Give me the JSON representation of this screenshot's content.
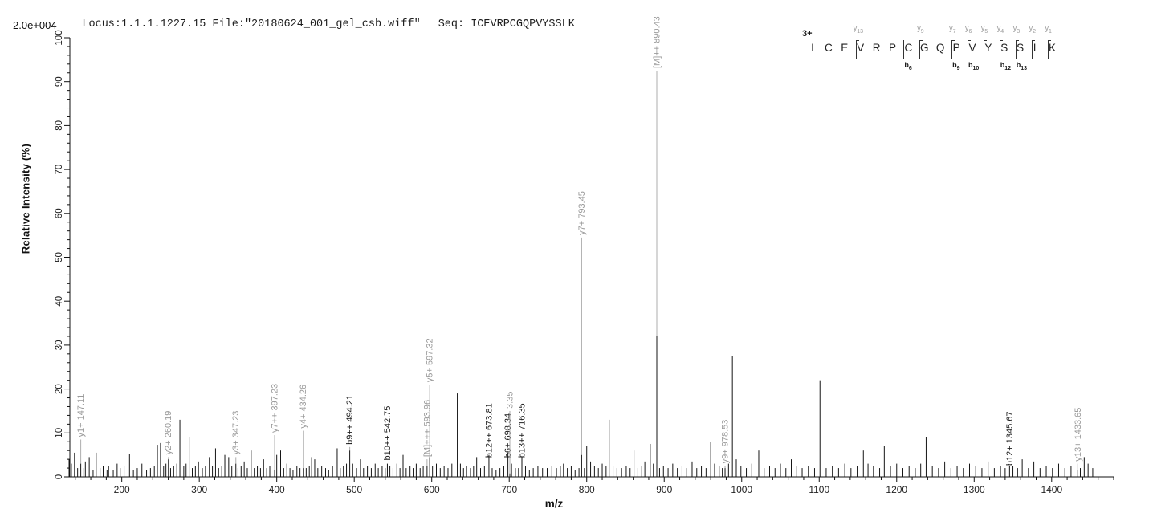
{
  "header": {
    "locus_file": "Locus:1.1.1.1227.15 File:\"20180624_001_gel_csb.wiff\"",
    "seq_label": "Seq: ICEVRPCGQPVYSSLK"
  },
  "y_axis": {
    "title": "Relative  Intensity (%)",
    "scale_label": "2.0e+004",
    "range": [
      0,
      100
    ],
    "major_ticks": [
      0,
      10,
      20,
      30,
      40,
      50,
      60,
      70,
      80,
      90,
      100
    ],
    "minor_step": 2
  },
  "x_axis": {
    "title": "m/z",
    "range": [
      133,
      1480
    ],
    "major_ticks": [
      200,
      300,
      400,
      500,
      600,
      700,
      800,
      900,
      1000,
      1100,
      1200,
      1300,
      1400
    ],
    "minor_step": 20
  },
  "colors": {
    "peak": "#151515",
    "axis": "#111111",
    "leader": "#adadad",
    "label_gray": "#9a9a9a",
    "label_black": "#1c1c1c"
  },
  "peptide": {
    "charge_label": "3+",
    "residues": [
      "I",
      "C",
      "E",
      "V",
      "R",
      "P",
      "C",
      "G",
      "Q",
      "P",
      "V",
      "Y",
      "S",
      "S",
      "L",
      "K"
    ],
    "cleavages": [
      {
        "after_index": 2,
        "y_ion": "y13",
        "b_ion": null
      },
      {
        "after_index": 5,
        "y_ion": null,
        "b_ion": "b6"
      },
      {
        "after_index": 6,
        "y_ion": "y9",
        "b_ion": null
      },
      {
        "after_index": 8,
        "y_ion": "y7",
        "b_ion": "b9"
      },
      {
        "after_index": 9,
        "y_ion": "y6",
        "b_ion": "b10"
      },
      {
        "after_index": 10,
        "y_ion": "y5",
        "b_ion": null
      },
      {
        "after_index": 11,
        "y_ion": "y4",
        "b_ion": "b12"
      },
      {
        "after_index": 12,
        "y_ion": "y3",
        "b_ion": "b13"
      },
      {
        "after_index": 13,
        "y_ion": "y2",
        "b_ion": null
      },
      {
        "after_index": 14,
        "y_ion": "y1",
        "b_ion": null
      }
    ]
  },
  "chart_data": {
    "type": "bar",
    "subtype": "mass-spectrum-stick-plot",
    "title": "",
    "xlabel": "m/z",
    "ylabel": "Relative  Intensity (%)",
    "xlim": [
      133,
      1480
    ],
    "ylim": [
      0,
      100
    ],
    "grid": false,
    "full_scale_counts": "2.0e+004",
    "labeled_peaks": [
      {
        "mz": 147.11,
        "label": "y1+ 147.11",
        "color": "gray",
        "intensity_pct": 3,
        "label_anchor_pct": 8.5
      },
      {
        "mz": 260.19,
        "label": "y2+ 260.19",
        "color": "gray",
        "intensity_pct": 4,
        "label_anchor_pct": 4.5
      },
      {
        "mz": 347.23,
        "label": "y3+ 347.23",
        "color": "gray",
        "intensity_pct": 3,
        "label_anchor_pct": 4.5
      },
      {
        "mz": 397.23,
        "label": "y7++ 397.23",
        "color": "gray",
        "intensity_pct": 1.5,
        "label_anchor_pct": 9.5
      },
      {
        "mz": 434.26,
        "label": "y4+ 434.26",
        "color": "gray",
        "intensity_pct": 2,
        "label_anchor_pct": 10.5
      },
      {
        "mz": 494.21,
        "label": "b9++ 494.21",
        "color": "black",
        "intensity_pct": 6,
        "label_anchor_pct": 6.8
      },
      {
        "mz": 542.75,
        "label": "b10++ 542.75",
        "color": "black",
        "intensity_pct": 3,
        "label_anchor_pct": 3.2
      },
      {
        "mz": 593.96,
        "label": "[M]+++ 593.96",
        "color": "gray",
        "intensity_pct": 2.5,
        "label_anchor_pct": 4
      },
      {
        "mz": 597.32,
        "label": "y5+ 597.32",
        "color": "gray",
        "intensity_pct": 4.5,
        "label_anchor_pct": 21
      },
      {
        "mz": 673.81,
        "label": "b12++ 673.81",
        "color": "black",
        "intensity_pct": 5,
        "label_anchor_pct": 3.8
      },
      {
        "mz": 698.34,
        "label": "b6+ 698.34",
        "color": "black",
        "intensity_pct": 5.5,
        "label_anchor_pct": 3.8
      },
      {
        "mz": 700.8,
        "label": "3.35",
        "color": "gray",
        "intensity_pct": 0.8,
        "label_anchor_pct": 15
      },
      {
        "mz": 716.35,
        "label": "b13++ 716.35",
        "color": "black",
        "intensity_pct": 4.5,
        "label_anchor_pct": 3.8
      },
      {
        "mz": 793.45,
        "label": "y7+ 793.45",
        "color": "gray",
        "intensity_pct": 5,
        "label_anchor_pct": 54.5
      },
      {
        "mz": 890.43,
        "label": "[M]++ 890.43",
        "color": "gray",
        "intensity_pct": 32,
        "label_anchor_pct": 92.5
      },
      {
        "mz": 978.53,
        "label": "y9+ 978.53",
        "color": "gray",
        "intensity_pct": 2,
        "label_anchor_pct": 2.5
      },
      {
        "mz": 1345.67,
        "label": "b12+ 1345.67",
        "color": "black",
        "intensity_pct": 2.5,
        "label_anchor_pct": 2
      },
      {
        "mz": 1433.65,
        "label": "y13+ 1433.65",
        "color": "gray",
        "intensity_pct": 1.5,
        "label_anchor_pct": 3
      }
    ],
    "background_peaks": [
      [
        132,
        4
      ],
      [
        135,
        3
      ],
      [
        139,
        5.5
      ],
      [
        143,
        2
      ],
      [
        151,
        2
      ],
      [
        153,
        3.5
      ],
      [
        158,
        4.5
      ],
      [
        163,
        1.5
      ],
      [
        167,
        5.5
      ],
      [
        172,
        2
      ],
      [
        176,
        2.5
      ],
      [
        181,
        1.5
      ],
      [
        183,
        2.5
      ],
      [
        189,
        1.5
      ],
      [
        194,
        3
      ],
      [
        198,
        2
      ],
      [
        203,
        2.5
      ],
      [
        210,
        5.3
      ],
      [
        215,
        1.5
      ],
      [
        220,
        2
      ],
      [
        226,
        3
      ],
      [
        232,
        1.5
      ],
      [
        237,
        2
      ],
      [
        242,
        2.5
      ],
      [
        246,
        7.3
      ],
      [
        250,
        7.7
      ],
      [
        254,
        2.5
      ],
      [
        257,
        3
      ],
      [
        263,
        2
      ],
      [
        267,
        2.5
      ],
      [
        271,
        3
      ],
      [
        275,
        13
      ],
      [
        280,
        2.5
      ],
      [
        283,
        3
      ],
      [
        287,
        9
      ],
      [
        291,
        2
      ],
      [
        295,
        2.5
      ],
      [
        299,
        3.5
      ],
      [
        304,
        2
      ],
      [
        308,
        2.5
      ],
      [
        313,
        4.5
      ],
      [
        317,
        2.5
      ],
      [
        321,
        6.5
      ],
      [
        325,
        2
      ],
      [
        329,
        2.5
      ],
      [
        333,
        5
      ],
      [
        338,
        4.5
      ],
      [
        342,
        2.5
      ],
      [
        350,
        2
      ],
      [
        354,
        2.5
      ],
      [
        358,
        3.5
      ],
      [
        362,
        2
      ],
      [
        367,
        6
      ],
      [
        371,
        2
      ],
      [
        375,
        2.5
      ],
      [
        379,
        2
      ],
      [
        383,
        4
      ],
      [
        387,
        2
      ],
      [
        391,
        2.5
      ],
      [
        400,
        5
      ],
      [
        405,
        6
      ],
      [
        409,
        2
      ],
      [
        413,
        3
      ],
      [
        417,
        2
      ],
      [
        421,
        1.5
      ],
      [
        426,
        2.5
      ],
      [
        430,
        2
      ],
      [
        438,
        2
      ],
      [
        442,
        2.5
      ],
      [
        445,
        4.5
      ],
      [
        449,
        4
      ],
      [
        453,
        2
      ],
      [
        458,
        2.5
      ],
      [
        463,
        2
      ],
      [
        467,
        1.5
      ],
      [
        472,
        2.5
      ],
      [
        478,
        6.5
      ],
      [
        482,
        2
      ],
      [
        486,
        2.5
      ],
      [
        490,
        3
      ],
      [
        498,
        3
      ],
      [
        503,
        2
      ],
      [
        508,
        4
      ],
      [
        512,
        2
      ],
      [
        517,
        2.5
      ],
      [
        522,
        2
      ],
      [
        527,
        3
      ],
      [
        531,
        2
      ],
      [
        536,
        2.5
      ],
      [
        540,
        2
      ],
      [
        546,
        2.5
      ],
      [
        550,
        2
      ],
      [
        555,
        3
      ],
      [
        559,
        2
      ],
      [
        563,
        5
      ],
      [
        567,
        2
      ],
      [
        572,
        2.5
      ],
      [
        576,
        2
      ],
      [
        580,
        3
      ],
      [
        585,
        2
      ],
      [
        589,
        2.5
      ],
      [
        601,
        2.5
      ],
      [
        606,
        3
      ],
      [
        611,
        2
      ],
      [
        616,
        2.5
      ],
      [
        621,
        2
      ],
      [
        626,
        3
      ],
      [
        633,
        19
      ],
      [
        637,
        3
      ],
      [
        641,
        2
      ],
      [
        645,
        2.5
      ],
      [
        650,
        2
      ],
      [
        654,
        2.5
      ],
      [
        658,
        4.5
      ],
      [
        663,
        2
      ],
      [
        668,
        2.5
      ],
      [
        678,
        2
      ],
      [
        683,
        1.5
      ],
      [
        688,
        2
      ],
      [
        693,
        2.5
      ],
      [
        703,
        3
      ],
      [
        708,
        2
      ],
      [
        712,
        2
      ],
      [
        721,
        2.5
      ],
      [
        726,
        1.5
      ],
      [
        731,
        2
      ],
      [
        737,
        2.5
      ],
      [
        743,
        2
      ],
      [
        749,
        2
      ],
      [
        755,
        2.5
      ],
      [
        761,
        2
      ],
      [
        766,
        2.5
      ],
      [
        770,
        3
      ],
      [
        775,
        2
      ],
      [
        780,
        2.5
      ],
      [
        785,
        1.5
      ],
      [
        790,
        2
      ],
      [
        797,
        2
      ],
      [
        800,
        7
      ],
      [
        805,
        3.5
      ],
      [
        810,
        2.5
      ],
      [
        815,
        2
      ],
      [
        820,
        3
      ],
      [
        825,
        2.5
      ],
      [
        829,
        13
      ],
      [
        834,
        2.5
      ],
      [
        839,
        2
      ],
      [
        845,
        2
      ],
      [
        851,
        2.5
      ],
      [
        856,
        2
      ],
      [
        861,
        6
      ],
      [
        866,
        2
      ],
      [
        871,
        2.5
      ],
      [
        875,
        3.5
      ],
      [
        882,
        7.5
      ],
      [
        886,
        3
      ],
      [
        894,
        2
      ],
      [
        899,
        2.5
      ],
      [
        905,
        2
      ],
      [
        911,
        3
      ],
      [
        917,
        2
      ],
      [
        923,
        2.5
      ],
      [
        929,
        2
      ],
      [
        936,
        3.5
      ],
      [
        942,
        2
      ],
      [
        948,
        2.5
      ],
      [
        954,
        2
      ],
      [
        960,
        8
      ],
      [
        965,
        3
      ],
      [
        971,
        2.5
      ],
      [
        975,
        2
      ],
      [
        983,
        3
      ],
      [
        988,
        27.5
      ],
      [
        993,
        4
      ],
      [
        999,
        2.5
      ],
      [
        1006,
        2
      ],
      [
        1013,
        3
      ],
      [
        1022,
        6
      ],
      [
        1029,
        2
      ],
      [
        1036,
        2.5
      ],
      [
        1043,
        2
      ],
      [
        1050,
        3
      ],
      [
        1057,
        2
      ],
      [
        1064,
        4
      ],
      [
        1071,
        2.5
      ],
      [
        1078,
        2
      ],
      [
        1086,
        2.5
      ],
      [
        1094,
        2
      ],
      [
        1101,
        22
      ],
      [
        1109,
        2
      ],
      [
        1117,
        2.5
      ],
      [
        1125,
        2
      ],
      [
        1133,
        3
      ],
      [
        1141,
        2
      ],
      [
        1149,
        2.5
      ],
      [
        1157,
        6
      ],
      [
        1163,
        3
      ],
      [
        1170,
        2.5
      ],
      [
        1178,
        2
      ],
      [
        1184,
        7
      ],
      [
        1192,
        2.5
      ],
      [
        1200,
        3
      ],
      [
        1208,
        2
      ],
      [
        1216,
        2.5
      ],
      [
        1224,
        2
      ],
      [
        1231,
        3
      ],
      [
        1238,
        9
      ],
      [
        1246,
        2.5
      ],
      [
        1254,
        2
      ],
      [
        1262,
        3.5
      ],
      [
        1270,
        2
      ],
      [
        1278,
        2.5
      ],
      [
        1286,
        2
      ],
      [
        1294,
        3
      ],
      [
        1302,
        2.5
      ],
      [
        1310,
        2
      ],
      [
        1318,
        3.5
      ],
      [
        1326,
        2
      ],
      [
        1334,
        2.5
      ],
      [
        1340,
        2
      ],
      [
        1350,
        2.5
      ],
      [
        1356,
        2
      ],
      [
        1362,
        4
      ],
      [
        1370,
        2
      ],
      [
        1377,
        3.5
      ],
      [
        1385,
        2
      ],
      [
        1393,
        2.5
      ],
      [
        1401,
        2
      ],
      [
        1409,
        3
      ],
      [
        1417,
        2
      ],
      [
        1425,
        2.5
      ],
      [
        1437,
        2
      ],
      [
        1442,
        4.5
      ],
      [
        1447,
        3
      ],
      [
        1453,
        2
      ]
    ]
  }
}
